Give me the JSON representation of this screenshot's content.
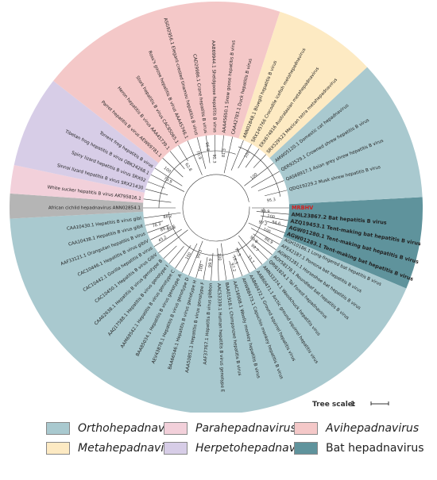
{
  "tree_scale": {
    "label": "Tree scale:",
    "value": "1"
  },
  "colors": {
    "ortho": "#a9c9cf",
    "para": "#f2d0da",
    "avi": "#f4c8c8",
    "meta": "#fdeac3",
    "herpeto": "#d7cde7",
    "bat": "#5f939c",
    "african": "#b5b5b5",
    "highlight": "#d21f1f"
  },
  "legend": [
    {
      "label": "Orthohepadnavirus",
      "color": "#a9c9cf",
      "italic": true
    },
    {
      "label": "Parahepadnavirus",
      "color": "#f2d0da",
      "italic": true
    },
    {
      "label": "Avihepadnavirus",
      "color": "#f4c8c8",
      "italic": true
    },
    {
      "label": "Metahepadnavirus",
      "color": "#fdeac3",
      "italic": true
    },
    {
      "label": "Herpetohepadnavirus",
      "color": "#d7cde7",
      "italic": true
    },
    {
      "label": "Bat hepadnavirus",
      "color": "#5f939c",
      "italic": false
    }
  ],
  "leaves": [
    {
      "label": "MRBHV",
      "angle": 0,
      "style": "red"
    },
    {
      "label": "AML23867.2 Bat hepatitis B virus",
      "angle": 5,
      "style": "bold"
    },
    {
      "label": "AZQ19453.1 Tent-making bat hepatitis B virus",
      "angle": 10,
      "style": "bold"
    },
    {
      "label": "AGW01280.1 Tent-making bat hepatitis B virus",
      "angle": 15,
      "style": "bold"
    },
    {
      "label": "AGW01283.1 Tent-making bat hepatitis B virus",
      "angle": 20,
      "style": "bold"
    },
    {
      "label": "AGH10186.1 Long-fingered bat hepatitis B virus",
      "angle": 25,
      "style": "normal"
    },
    {
      "label": "AFE42187.1 Pomona bat hepatitis B virus",
      "angle": 30,
      "style": "normal"
    },
    {
      "label": "AGW01281.1 Horseshoe bat hepatitis B virus",
      "angle": 35,
      "style": "normal"
    },
    {
      "label": "AOY58178.1 Roundleaf bat hepatitis B virus",
      "angle": 40,
      "style": "normal"
    },
    {
      "label": "QRI61824.1 Tai Forest hepadnavirus",
      "angle": 45,
      "style": "normal"
    },
    {
      "label": "AMN33374.1 Woodchuck hepatitis virus",
      "angle": 51,
      "style": "normal"
    },
    {
      "label": "AAB60471.1 Arctic ground squirrel hepatitis virus",
      "angle": 57,
      "style": "normal"
    },
    {
      "label": "AAB60472.1 Ground squirrel hepatitis virus",
      "angle": 63,
      "style": "normal"
    },
    {
      "label": "AHW88473.1 Capuchin monkey hepatitis B virus",
      "angle": 69,
      "style": "normal"
    },
    {
      "label": "AAC16908.1 Woolly monkey hepatitis B virus",
      "angle": 76,
      "style": "normal"
    },
    {
      "label": "BAA01918.1 Chimpanzee hepatitis B virus",
      "angle": 82,
      "style": "normal"
    },
    {
      "label": "AAC53339.1 Human hepatitis B virus genotype E",
      "angle": 88,
      "style": "normal"
    },
    {
      "label": "AAF37767.1 Hepatitis B virus gibbon",
      "angle": 94,
      "style": "normal"
    },
    {
      "label": "AAA50851.1 Hepatitis B virus genotype F",
      "angle": 100,
      "style": "normal"
    },
    {
      "label": "BAA66546.1 Hepatitis B virus genotype H",
      "angle": 106,
      "style": "normal"
    },
    {
      "label": "AEV43878.1 Hepatitis B virus genotype D",
      "angle": 112,
      "style": "normal"
    },
    {
      "label": "BAA85034.1 Hepatitis B virus genotype A",
      "angle": 118,
      "style": "normal"
    },
    {
      "label": "AAM69542.1 Hepatitis B virus genotype C",
      "angle": 124,
      "style": "normal"
    },
    {
      "label": "AAQ17588.1 Hepatitis B virus genotype I",
      "angle": 130,
      "style": "normal"
    },
    {
      "label": "CAA62638.1 Hepatitis B virus genotype B",
      "angle": 136,
      "style": "normal"
    },
    {
      "label": "CAC10450.1 Hepatitis B virus GibV",
      "angle": 142,
      "style": "normal"
    },
    {
      "label": "CAC10442.1 Gorilla hepatitis B virus",
      "angle": 148,
      "style": "normal"
    },
    {
      "label": "CAC10446.1 Hepatitis B virus gibIV",
      "angle": 154,
      "style": "normal"
    },
    {
      "label": "AAF33121.1 Orangutan hepatitis B virus",
      "angle": 160,
      "style": "normal"
    },
    {
      "label": "CAA10438.1 Hepatitis B virus gibII",
      "angle": 166,
      "style": "normal"
    },
    {
      "label": "CAA10430.1 Hepatitis B virus gibI",
      "angle": 172,
      "style": "normal"
    },
    {
      "label": "African cichlid hepadnavirus ANN02854.1",
      "angle": 180,
      "style": "normal"
    },
    {
      "label": "White sucker hepatitis B virus AKT95816.1",
      "angle": 187,
      "style": "normal"
    },
    {
      "label": "Sinnai lizard hepatitis B virus SRX21430",
      "angle": 195,
      "style": "normal"
    },
    {
      "label": "Spiny lizard hepatitis B virus SRX02",
      "angle": 201,
      "style": "normal"
    },
    {
      "label": "Tibetan frog hepatitis B virus QBK24268.1",
      "angle": 207,
      "style": "normal"
    },
    {
      "label": "Torrent frog hepatitis B virus",
      "angle": 213,
      "style": "normal"
    },
    {
      "label": "Parrot hepatitis B virus AEW69781.1",
      "angle": 223,
      "style": "normal"
    },
    {
      "label": "Heron hepatitis B virus AAA45739.1",
      "angle": 231,
      "style": "normal"
    },
    {
      "label": "Stork hepatitis B virus CAC85065.1",
      "angle": 239,
      "style": "normal"
    },
    {
      "label": "Ross's goose hepatitis B virus AAA45746.1",
      "angle": 247,
      "style": "normal"
    },
    {
      "label": "ASG92956.1 Elegant-crested tinamou hepatitis B virus",
      "angle": 255,
      "style": "normal"
    },
    {
      "label": "CAD29986.1 Crane hepatitis B virus",
      "angle": 262,
      "style": "normal"
    },
    {
      "label": "AAB69944.1 Sheldgoose hepatitis B virus",
      "angle": 269,
      "style": "normal"
    },
    {
      "label": "AAA45650.1 Snow goose hepatitis B virus",
      "angle": 276,
      "style": "normal"
    },
    {
      "label": "CAA42783.1 Duck hepatitis B virus",
      "angle": 283,
      "style": "normal"
    },
    {
      "label": "ANN02848.1 Bluegill hepatitis B virus",
      "angle": 292,
      "style": "normal"
    },
    {
      "label": "SRX145766 Crocodile icefish metahepadnavirus",
      "angle": 299,
      "style": "normal"
    },
    {
      "label": "ERX674816 Australasian metahepadnavirus",
      "angle": 306,
      "style": "normal"
    },
    {
      "label": "SRX529523 Mexican tetra metahepadnavirus",
      "angle": 313,
      "style": "normal"
    },
    {
      "label": "AMW05120.1 Domestic cat hepadnavirus",
      "angle": 322,
      "style": "normal"
    },
    {
      "label": "QER92529.1 Crowned shrew hepatitis B virus",
      "angle": 330,
      "style": "normal"
    },
    {
      "label": "QAS68917.1 Asian grey shrew hepatitis B virus",
      "angle": 338,
      "style": "normal"
    },
    {
      "label": "QDQ19229.2 Musk shrew hepatitis B virus",
      "angle": 346,
      "style": "normal"
    }
  ],
  "bootstrap": [
    {
      "label": "99.9",
      "angle": 4
    },
    {
      "label": "100",
      "angle": 9
    },
    {
      "label": "94.6",
      "angle": 14
    },
    {
      "label": "97.2",
      "angle": 18
    },
    {
      "label": "100",
      "angle": 24
    },
    {
      "label": "86.9",
      "angle": 32
    },
    {
      "label": "99.8",
      "angle": 40
    },
    {
      "label": "99.7",
      "angle": 46
    },
    {
      "label": "33.7",
      "angle": 56
    },
    {
      "label": "77.3",
      "angle": 64
    },
    {
      "label": "16.5",
      "angle": 70
    },
    {
      "label": "97.2",
      "angle": 74
    },
    {
      "label": "100",
      "angle": 86
    },
    {
      "label": "99.9",
      "angle": 96
    },
    {
      "label": "100",
      "angle": 104
    },
    {
      "label": "99.3",
      "angle": 110
    },
    {
      "label": "100",
      "angle": 120
    },
    {
      "label": "45.2",
      "angle": 150
    },
    {
      "label": "88.6",
      "angle": 156
    },
    {
      "label": "89.3",
      "angle": 158
    },
    {
      "label": "78.3",
      "angle": 164
    },
    {
      "label": "88.2",
      "angle": 170
    },
    {
      "label": "73.9",
      "angle": 210
    },
    {
      "label": "100",
      "angle": 218
    },
    {
      "label": "62.8",
      "angle": 236
    },
    {
      "label": "70.9",
      "angle": 252
    },
    {
      "label": "96.8",
      "angle": 262
    },
    {
      "label": "92.3",
      "angle": 268
    },
    {
      "label": "81.3",
      "angle": 278
    },
    {
      "label": "100",
      "angle": 300
    },
    {
      "label": "100",
      "angle": 320
    },
    {
      "label": "95.3",
      "angle": 352
    }
  ]
}
